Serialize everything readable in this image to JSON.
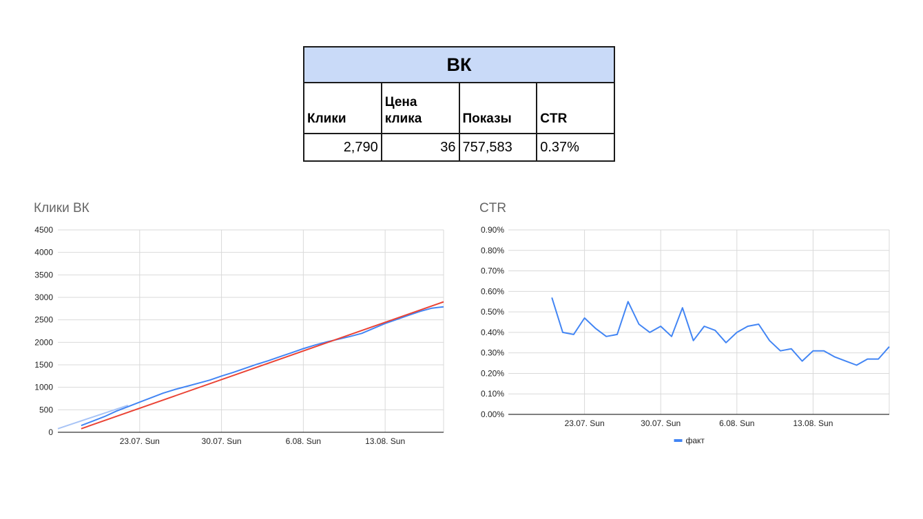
{
  "table": {
    "title": "ВК",
    "headers": [
      "Клики",
      "Цена клика",
      "Показы",
      "CTR"
    ],
    "values": [
      "2,790",
      "36",
      "757,583",
      "0.37%"
    ]
  },
  "colors": {
    "header_bg": "#c9daf8",
    "series_blue": "#4285f4",
    "trend_red": "#ea4335",
    "extension_light_blue": "#a8c4f6"
  },
  "chart_data": [
    {
      "type": "line",
      "title": "Клики ВК",
      "x_ticks": [
        "23.07. Sun",
        "30.07. Sun",
        "6.08. Sun",
        "13.08. Sun"
      ],
      "x_tick_days": [
        23,
        30,
        37,
        44
      ],
      "x_range_days": [
        16,
        49
      ],
      "ylim": [
        0,
        4500
      ],
      "y_ticks": [
        "0",
        "500",
        "1000",
        "1500",
        "2000",
        "2500",
        "3000",
        "3500",
        "4000",
        "4500"
      ],
      "grid": true,
      "series": [
        {
          "role": "actual",
          "color": "#4285f4",
          "days": [
            18,
            19,
            20,
            21,
            22,
            23,
            24,
            25,
            26,
            27,
            28,
            29,
            30,
            31,
            32,
            33,
            34,
            35,
            36,
            37,
            38,
            39,
            40,
            41,
            42,
            43,
            44,
            45,
            46,
            47,
            48,
            49
          ],
          "values": [
            150,
            250,
            350,
            470,
            570,
            670,
            770,
            870,
            950,
            1020,
            1090,
            1160,
            1250,
            1330,
            1420,
            1510,
            1590,
            1680,
            1770,
            1860,
            1940,
            2010,
            2070,
            2130,
            2200,
            2310,
            2420,
            2510,
            2600,
            2690,
            2760,
            2790
          ]
        },
        {
          "role": "trend",
          "color": "#ea4335",
          "days": [
            18,
            49
          ],
          "values": [
            80,
            2900
          ]
        },
        {
          "role": "extension",
          "color": "#a8c4f6",
          "days": [
            16,
            22
          ],
          "values": [
            80,
            600
          ]
        }
      ]
    },
    {
      "type": "line",
      "title": "CTR",
      "x_ticks": [
        "23.07. Sun",
        "30.07. Sun",
        "6.08. Sun",
        "13.08. Sun"
      ],
      "x_tick_days": [
        23,
        30,
        37,
        44
      ],
      "x_range_days": [
        16,
        51
      ],
      "ylim": [
        0,
        0.9
      ],
      "y_ticks": [
        "0.00%",
        "0.10%",
        "0.20%",
        "0.30%",
        "0.40%",
        "0.50%",
        "0.60%",
        "0.70%",
        "0.80%",
        "0.90%"
      ],
      "grid": true,
      "legend": "bottom",
      "series": [
        {
          "name": "факт",
          "color": "#4285f4",
          "days": [
            20,
            21,
            22,
            23,
            24,
            25,
            26,
            27,
            28,
            29,
            30,
            31,
            32,
            33,
            34,
            35,
            36,
            37,
            38,
            39,
            40,
            41,
            42,
            43,
            44,
            45,
            46,
            47,
            48,
            49,
            50,
            51
          ],
          "values": [
            0.57,
            0.4,
            0.39,
            0.47,
            0.42,
            0.38,
            0.39,
            0.55,
            0.44,
            0.4,
            0.43,
            0.38,
            0.52,
            0.36,
            0.43,
            0.41,
            0.35,
            0.4,
            0.43,
            0.44,
            0.36,
            0.31,
            0.32,
            0.26,
            0.31,
            0.31,
            0.28,
            0.26,
            0.24,
            0.27,
            0.27,
            0.33
          ]
        }
      ]
    }
  ]
}
